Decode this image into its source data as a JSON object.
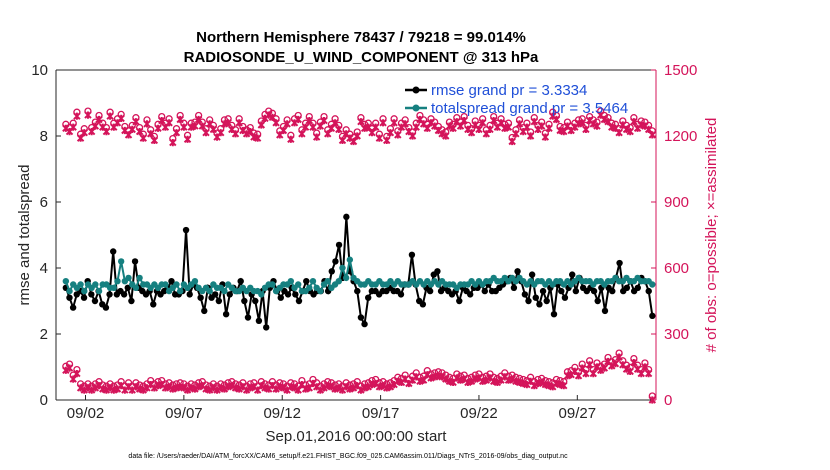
{
  "chart_data": {
    "type": "line",
    "title": "Northern Hemisphere 78437 / 79218 = 99.014%",
    "subtitle": "RADIOSONDE_U_WIND_COMPONENT @ 313 hPa",
    "xlabel": "Sep.01,2016 00:00:00 start",
    "ylabel": "rmse and totalspread",
    "ylabel_right": "# of obs: o=possible; ×=assimilated",
    "ylim": [
      0,
      10
    ],
    "ylim_right": [
      0,
      1500
    ],
    "y_ticks": [
      "0",
      "2",
      "4",
      "6",
      "8",
      "10"
    ],
    "y_ticks_right": [
      "0",
      "300",
      "600",
      "900",
      "1200",
      "1500"
    ],
    "x_range_days": [
      0.5,
      31.0
    ],
    "x_tick_labels": [
      "09/02",
      "09/07",
      "09/12",
      "09/17",
      "09/22",
      "09/27"
    ],
    "x_tick_days": [
      2,
      7,
      12,
      17,
      22,
      27
    ],
    "legend_position": "top-right",
    "series": [
      {
        "name": "rmse grand pr = 3.3334",
        "color": "#000000",
        "axis": "left",
        "values": [
          3.4,
          3.1,
          2.8,
          3.2,
          3.3,
          3.1,
          3.6,
          3.2,
          3.0,
          3.3,
          2.9,
          2.8,
          3.2,
          4.5,
          3.2,
          3.3,
          3.2,
          3.4,
          3.0,
          4.2,
          3.4,
          3.3,
          3.2,
          3.3,
          2.9,
          3.3,
          3.2,
          3.3,
          3.4,
          3.6,
          3.2,
          3.2,
          3.3,
          5.15,
          3.2,
          3.5,
          3.4,
          3.1,
          2.7,
          3.4,
          3.1,
          3.2,
          3.0,
          3.5,
          2.6,
          3.2,
          3.4,
          3.3,
          3.6,
          3.0,
          2.5,
          3.2,
          3.0,
          2.4,
          3.3,
          2.2,
          3.4,
          3.6,
          3.3,
          3.1,
          3.3,
          3.2,
          3.4,
          3.2,
          3.0,
          3.3,
          3.6,
          3.3,
          3.2,
          3.3,
          3.3,
          3.6,
          3.3,
          3.9,
          4.2,
          4.7,
          3.7,
          5.55,
          3.9,
          3.6,
          3.3,
          2.5,
          2.3,
          3.1,
          3.3,
          3.3,
          3.2,
          3.3,
          3.3,
          3.4,
          3.3,
          3.3,
          3.2,
          3.5,
          3.5,
          4.4,
          3.5,
          3.0,
          2.9,
          3.4,
          3.3,
          3.8,
          3.9,
          3.3,
          3.4,
          3.3,
          3.2,
          3.3,
          3.0,
          3.4,
          3.3,
          3.2,
          3.4,
          3.4,
          3.5,
          3.3,
          3.5,
          3.3,
          3.3,
          3.4,
          3.5,
          3.6,
          3.7,
          3.4,
          3.9,
          3.6,
          3.2,
          3.0,
          3.8,
          3.1,
          2.9,
          3.3,
          3.0,
          3.4,
          2.6,
          3.5,
          3.3,
          3.1,
          3.4,
          3.8,
          3.3,
          3.7,
          3.4,
          3.3,
          3.4,
          3.3,
          3.0,
          3.4,
          2.7,
          3.4,
          3.3,
          3.7,
          4.15,
          3.3,
          3.4,
          3.6,
          3.3,
          3.4,
          3.7,
          3.6,
          3.3,
          2.55
        ],
        "grand_mean": 3.3334
      },
      {
        "name": "totalspread grand pr = 3.5464",
        "color": "#168080",
        "axis": "left",
        "values": [
          3.6,
          3.3,
          3.5,
          3.4,
          3.5,
          3.3,
          3.5,
          3.4,
          3.5,
          3.3,
          3.5,
          3.5,
          3.4,
          3.4,
          3.6,
          4.2,
          3.6,
          3.7,
          3.5,
          3.4,
          3.7,
          3.5,
          3.5,
          3.4,
          3.5,
          3.4,
          3.5,
          3.5,
          3.3,
          3.4,
          3.5,
          3.3,
          3.5,
          3.4,
          3.5,
          3.6,
          3.4,
          3.3,
          3.4,
          3.3,
          3.5,
          3.4,
          3.4,
          3.3,
          3.5,
          3.4,
          3.3,
          3.3,
          3.4,
          3.3,
          3.4,
          3.3,
          3.3,
          3.2,
          3.4,
          3.5,
          3.5,
          3.3,
          3.4,
          3.5,
          3.5,
          3.6,
          3.4,
          3.5,
          3.3,
          3.3,
          3.4,
          3.6,
          3.4,
          3.3,
          3.5,
          3.6,
          3.4,
          3.5,
          3.6,
          4.0,
          3.7,
          4.25,
          3.7,
          3.6,
          3.5,
          3.5,
          3.6,
          3.5,
          3.5,
          3.6,
          3.5,
          3.5,
          3.6,
          3.5,
          3.6,
          3.5,
          3.5,
          3.5,
          3.6,
          3.5,
          3.6,
          3.5,
          3.6,
          3.5,
          3.6,
          3.5,
          3.6,
          3.5,
          3.5,
          3.5,
          3.4,
          3.5,
          3.5,
          3.5,
          3.6,
          3.5,
          3.6,
          3.5,
          3.6,
          3.6,
          3.7,
          3.6,
          3.6,
          3.7,
          3.6,
          3.7,
          3.6,
          3.7,
          3.6,
          3.5,
          3.6,
          3.5,
          3.6,
          3.6,
          3.5,
          3.6,
          3.5,
          3.6,
          3.6,
          3.5,
          3.6,
          3.5,
          3.6,
          3.7,
          3.6,
          3.6,
          3.6,
          3.5,
          3.6,
          3.6,
          3.5,
          3.6,
          3.6,
          3.7,
          3.6,
          3.6,
          3.7,
          3.6,
          3.6,
          3.7,
          3.6,
          3.6,
          3.6,
          3.5
        ],
        "grand_mean": 3.5464
      },
      {
        "name": "top: obs possible (o) / assimilated (×)",
        "color": "#d4145a",
        "axis": "right",
        "values": [
          1235,
          1220,
          1240,
          1290,
          1190,
          1215,
          1295,
          1220,
          1245,
          1275,
          1240,
          1220,
          1290,
          1240,
          1260,
          1280,
          1225,
          1205,
          1230,
          1265,
          1220,
          1190,
          1255,
          1210,
          1180,
          1235,
          1270,
          1240,
          1260,
          1170,
          1215,
          1275,
          1240,
          1185,
          1240,
          1245,
          1275,
          1245,
          1215,
          1255,
          1230,
          1195,
          1215,
          1255,
          1260,
          1230,
          1210,
          1260,
          1225,
          1210,
          1220,
          1195,
          1190,
          1250,
          1280,
          1295,
          1285,
          1260,
          1205,
          1225,
          1255,
          1185,
          1260,
          1275,
          1210,
          1240,
          1270,
          1240,
          1195,
          1245,
          1270,
          1210,
          1235,
          1260,
          1230,
          1180,
          1210,
          1190,
          1175,
          1200,
          1265,
          1235,
          1240,
          1215,
          1240,
          1190,
          1260,
          1180,
          1215,
          1260,
          1205,
          1240,
          1255,
          1220,
          1200,
          1240,
          1275,
          1255,
          1235,
          1260,
          1245,
          1225,
          1210,
          1200,
          1245,
          1235,
          1265,
          1245,
          1270,
          1230,
          1215,
          1250,
          1230,
          1260,
          1210,
          1230,
          1270,
          1240,
          1260,
          1235,
          1240,
          1175,
          1210,
          1255,
          1220,
          1240,
          1200,
          1265,
          1230,
          1245,
          1195,
          1235,
          1290,
          1275,
          1225,
          1220,
          1245,
          1225,
          1240,
          1255,
          1260,
          1230,
          1270,
          1255,
          1245,
          1295,
          1275,
          1265,
          1240,
          1235,
          1215,
          1250,
          1230,
          1220,
          1265,
          1235,
          1250,
          1245,
          1230,
          1205
        ]
      },
      {
        "name": "bottom: obs possible (o) / assimilated (×)",
        "color": "#d4145a",
        "axis": "right",
        "values": [
          135,
          145,
          95,
          120,
          55,
          45,
          55,
          45,
          55,
          65,
          50,
          45,
          55,
          45,
          50,
          65,
          45,
          60,
          45,
          60,
          50,
          45,
          55,
          70,
          55,
          65,
          70,
          55,
          60,
          50,
          55,
          60,
          55,
          45,
          55,
          50,
          60,
          65,
          50,
          45,
          55,
          45,
          55,
          50,
          60,
          65,
          55,
          50,
          60,
          45,
          55,
          60,
          45,
          65,
          55,
          50,
          65,
          50,
          60,
          55,
          45,
          60,
          55,
          45,
          70,
          50,
          55,
          75,
          60,
          45,
          55,
          65,
          60,
          50,
          55,
          45,
          60,
          50,
          55,
          65,
          45,
          55,
          60,
          70,
          75,
          60,
          65,
          55,
          60,
          70,
          85,
          80,
          95,
          75,
          90,
          105,
          85,
          90,
          115,
          100,
          105,
          110,
          105,
          95,
          85,
          80,
          100,
          90,
          95,
          80,
          85,
          95,
          100,
          85,
          90,
          100,
          85,
          80,
          90,
          105,
          90,
          95,
          85,
          80,
          75,
          70,
          85,
          65,
          75,
          80,
          70,
          65,
          60,
          75,
          70,
          65,
          110,
          115,
          130,
          110,
          145,
          120,
          160,
          120,
          150,
          135,
          145,
          175,
          155,
          165,
          195,
          160,
          140,
          130,
          170,
          140,
          120,
          150,
          120,
          0
        ]
      }
    ]
  },
  "footer_text": "data file: /Users/raeder/DAI/ATM_forcXX/CAM6_setup/f.e21.FHIST_BGC.f09_025.CAM6assim.011/Diags_NTrS_2016-09/obs_diag_output.nc"
}
